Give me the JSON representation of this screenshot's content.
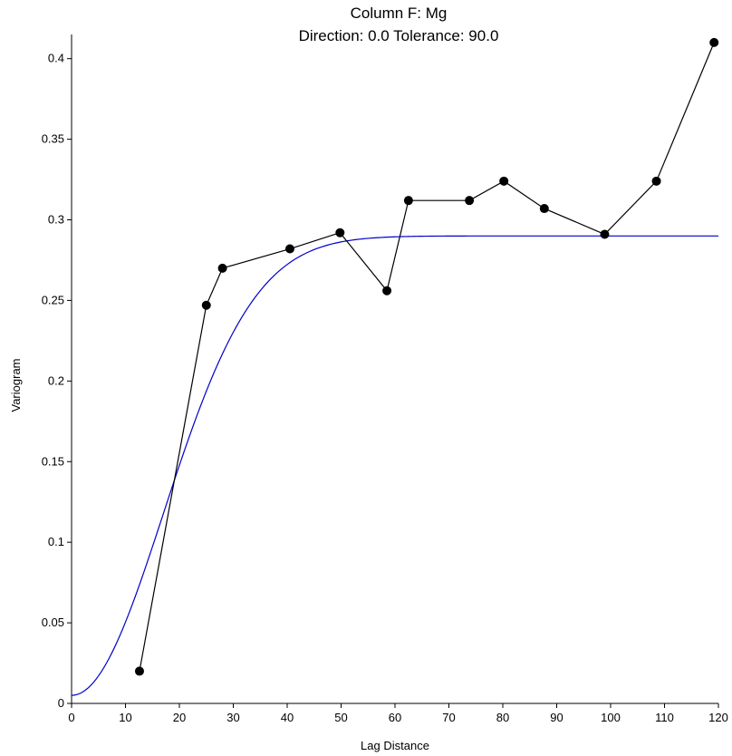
{
  "chart_data": {
    "type": "line",
    "title": "Column F:  Mg",
    "subtitle": "Direction: 0.0    Tolerance: 90.0",
    "xlabel": "Lag Distance",
    "ylabel": "Variogram",
    "xlim": [
      0,
      120
    ],
    "ylim": [
      0,
      0.415
    ],
    "xticks": [
      0,
      10,
      20,
      30,
      40,
      50,
      60,
      70,
      80,
      90,
      100,
      110,
      120
    ],
    "yticks": [
      0,
      0.05,
      0.1,
      0.15,
      0.2,
      0.25,
      0.3,
      0.35,
      0.4
    ],
    "grid": false,
    "series": [
      {
        "kind": "points-line",
        "color": "#000000",
        "x": [
          12.6,
          25.0,
          28.0,
          40.5,
          49.8,
          58.5,
          62.5,
          73.8,
          80.2,
          87.7,
          98.9,
          108.5,
          119.2
        ],
        "y": [
          0.02,
          0.247,
          0.27,
          0.282,
          0.292,
          0.256,
          0.312,
          0.312,
          0.324,
          0.307,
          0.291,
          0.324,
          0.41
        ]
      },
      {
        "kind": "model-curve",
        "model": "gaussian",
        "color": "#0000cc",
        "nugget": 0.005,
        "sill": 0.29,
        "range": 24
      }
    ]
  }
}
